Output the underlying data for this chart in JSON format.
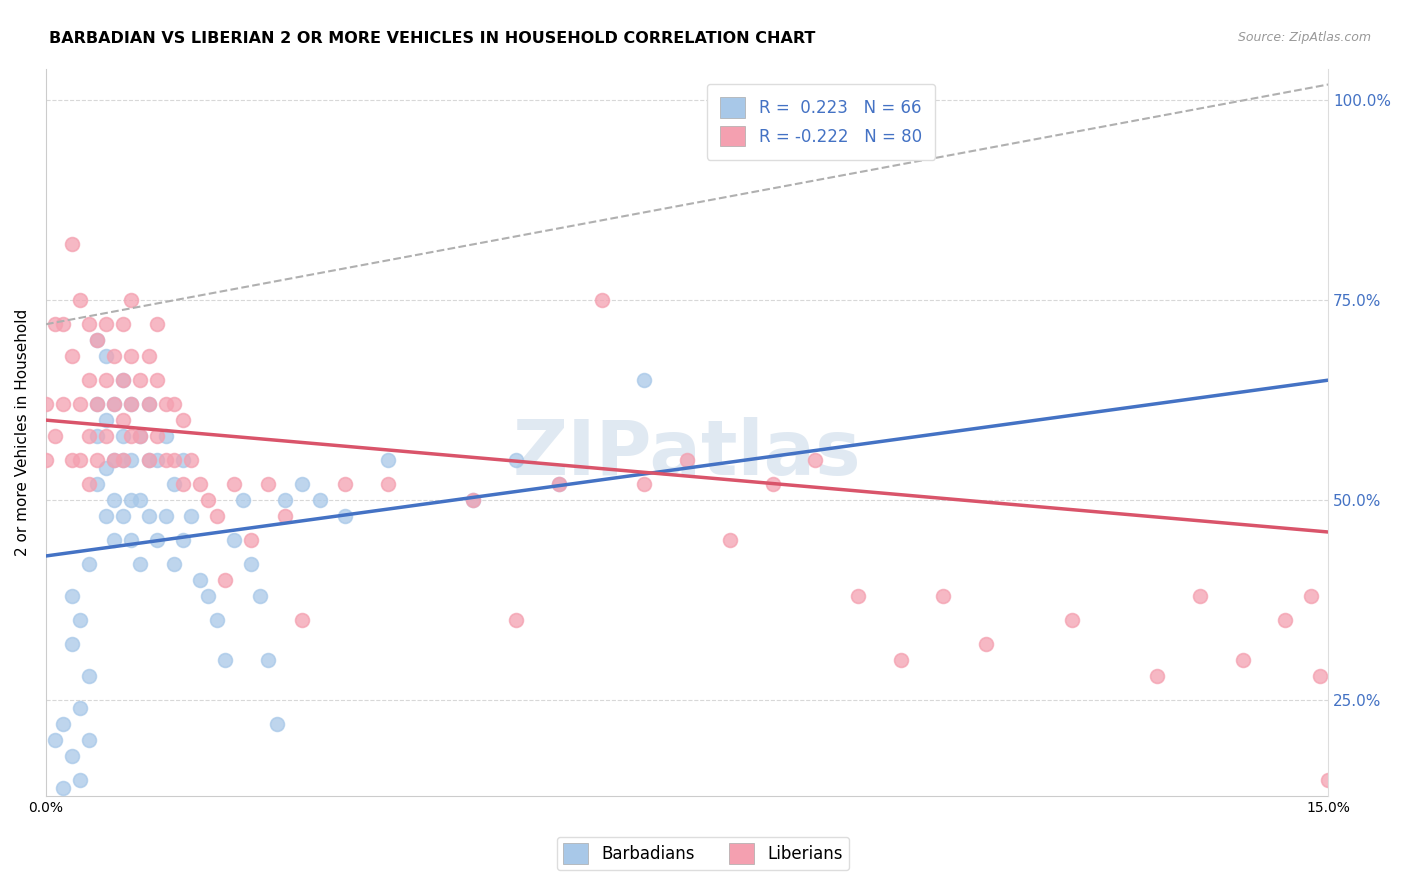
{
  "title": "BARBADIAN VS LIBERIAN 2 OR MORE VEHICLES IN HOUSEHOLD CORRELATION CHART",
  "source": "Source: ZipAtlas.com",
  "ylabel": "2 or more Vehicles in Household",
  "x_min": 0.0,
  "x_max": 0.15,
  "y_min": 0.13,
  "y_max": 1.04,
  "barbadian_R": 0.223,
  "barbadian_N": 66,
  "liberian_R": -0.222,
  "liberian_N": 80,
  "barbadian_color": "#a8c8e8",
  "liberian_color": "#f4a0b0",
  "barbadian_line_color": "#4472c4",
  "liberian_line_color": "#d9546a",
  "trendline_dashed_color": "#b0b0b0",
  "watermark_color": "#c8d8e8",
  "background_color": "#ffffff",
  "grid_color": "#d8d8d8",
  "right_axis_color": "#4472c4",
  "barbadian_trend_x0": 0.0,
  "barbadian_trend_y0": 0.43,
  "barbadian_trend_x1": 0.15,
  "barbadian_trend_y1": 0.65,
  "liberian_trend_x0": 0.0,
  "liberian_trend_y0": 0.6,
  "liberian_trend_x1": 0.15,
  "liberian_trend_y1": 0.46,
  "dash_trend_x0": 0.0,
  "dash_trend_y0": 0.72,
  "dash_trend_x1": 0.15,
  "dash_trend_y1": 1.02,
  "barbadian_x": [
    0.001,
    0.002,
    0.002,
    0.003,
    0.003,
    0.003,
    0.004,
    0.004,
    0.004,
    0.005,
    0.005,
    0.005,
    0.006,
    0.006,
    0.006,
    0.006,
    0.007,
    0.007,
    0.007,
    0.007,
    0.008,
    0.008,
    0.008,
    0.008,
    0.009,
    0.009,
    0.009,
    0.009,
    0.01,
    0.01,
    0.01,
    0.01,
    0.011,
    0.011,
    0.011,
    0.012,
    0.012,
    0.012,
    0.013,
    0.013,
    0.014,
    0.014,
    0.015,
    0.015,
    0.016,
    0.016,
    0.017,
    0.018,
    0.019,
    0.02,
    0.021,
    0.022,
    0.023,
    0.024,
    0.025,
    0.026,
    0.027,
    0.028,
    0.03,
    0.032,
    0.035,
    0.04,
    0.05,
    0.055,
    0.06,
    0.07
  ],
  "barbadian_y": [
    0.2,
    0.14,
    0.22,
    0.18,
    0.32,
    0.38,
    0.15,
    0.24,
    0.35,
    0.2,
    0.28,
    0.42,
    0.52,
    0.58,
    0.62,
    0.7,
    0.48,
    0.54,
    0.6,
    0.68,
    0.45,
    0.5,
    0.55,
    0.62,
    0.48,
    0.55,
    0.58,
    0.65,
    0.45,
    0.5,
    0.55,
    0.62,
    0.42,
    0.5,
    0.58,
    0.48,
    0.55,
    0.62,
    0.45,
    0.55,
    0.48,
    0.58,
    0.42,
    0.52,
    0.45,
    0.55,
    0.48,
    0.4,
    0.38,
    0.35,
    0.3,
    0.45,
    0.5,
    0.42,
    0.38,
    0.3,
    0.22,
    0.5,
    0.52,
    0.5,
    0.48,
    0.55,
    0.5,
    0.55,
    0.52,
    0.65
  ],
  "liberian_x": [
    0.0,
    0.0,
    0.001,
    0.001,
    0.002,
    0.002,
    0.003,
    0.003,
    0.003,
    0.004,
    0.004,
    0.004,
    0.005,
    0.005,
    0.005,
    0.005,
    0.006,
    0.006,
    0.006,
    0.007,
    0.007,
    0.007,
    0.008,
    0.008,
    0.008,
    0.009,
    0.009,
    0.009,
    0.009,
    0.01,
    0.01,
    0.01,
    0.01,
    0.011,
    0.011,
    0.012,
    0.012,
    0.012,
    0.013,
    0.013,
    0.013,
    0.014,
    0.014,
    0.015,
    0.015,
    0.016,
    0.016,
    0.017,
    0.018,
    0.019,
    0.02,
    0.021,
    0.022,
    0.024,
    0.026,
    0.028,
    0.03,
    0.035,
    0.04,
    0.05,
    0.055,
    0.06,
    0.065,
    0.07,
    0.075,
    0.08,
    0.085,
    0.09,
    0.095,
    0.1,
    0.105,
    0.11,
    0.12,
    0.13,
    0.135,
    0.14,
    0.145,
    0.148,
    0.149,
    0.15
  ],
  "liberian_y": [
    0.55,
    0.62,
    0.58,
    0.72,
    0.62,
    0.72,
    0.55,
    0.68,
    0.82,
    0.55,
    0.62,
    0.75,
    0.52,
    0.58,
    0.65,
    0.72,
    0.55,
    0.62,
    0.7,
    0.58,
    0.65,
    0.72,
    0.55,
    0.62,
    0.68,
    0.55,
    0.6,
    0.65,
    0.72,
    0.58,
    0.62,
    0.68,
    0.75,
    0.58,
    0.65,
    0.55,
    0.62,
    0.68,
    0.58,
    0.65,
    0.72,
    0.55,
    0.62,
    0.55,
    0.62,
    0.52,
    0.6,
    0.55,
    0.52,
    0.5,
    0.48,
    0.4,
    0.52,
    0.45,
    0.52,
    0.48,
    0.35,
    0.52,
    0.52,
    0.5,
    0.35,
    0.52,
    0.75,
    0.52,
    0.55,
    0.45,
    0.52,
    0.55,
    0.38,
    0.3,
    0.38,
    0.32,
    0.35,
    0.28,
    0.38,
    0.3,
    0.35,
    0.38,
    0.28,
    0.15
  ]
}
